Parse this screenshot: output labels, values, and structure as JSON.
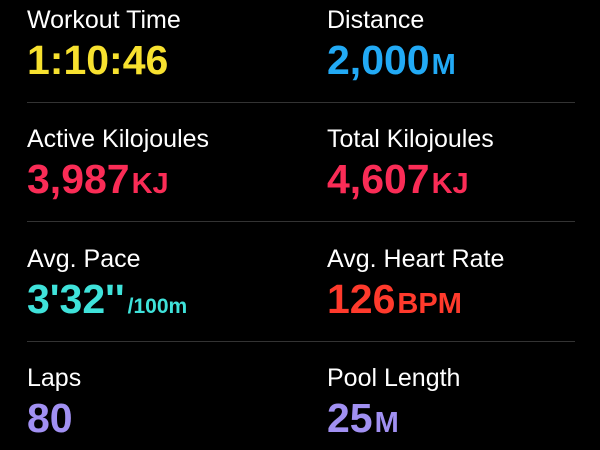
{
  "metrics": [
    {
      "label": "Workout Time",
      "value": "1:10:46"
    },
    {
      "label": "Distance",
      "value": "2,000",
      "unit": "M"
    },
    {
      "label": "Active Kilojoules",
      "value": "3,987",
      "unit": "KJ"
    },
    {
      "label": "Total Kilojoules",
      "value": "4,607",
      "unit": "KJ"
    },
    {
      "label": "Avg. Pace",
      "value": "3'32''",
      "unit": "/100m"
    },
    {
      "label": "Avg. Heart Rate",
      "value": "126",
      "unit": "BPM"
    },
    {
      "label": "Laps",
      "value": "80"
    },
    {
      "label": "Pool Length",
      "value": "25",
      "unit": "M"
    }
  ]
}
